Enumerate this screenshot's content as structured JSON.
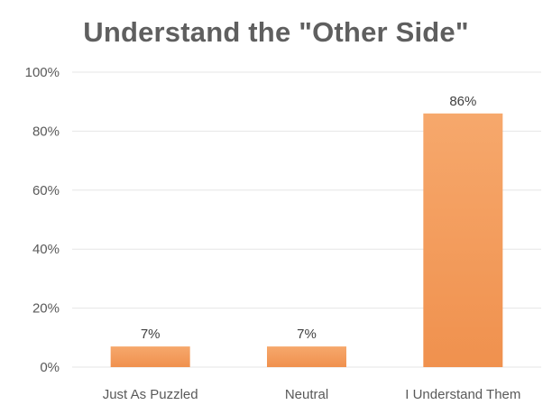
{
  "chart_data": {
    "type": "bar",
    "title": "Understand the \"Other Side\"",
    "xlabel": "",
    "ylabel": "",
    "categories": [
      "Just As Puzzled",
      "Neutral",
      "I Understand Them"
    ],
    "values": [
      7,
      7,
      86
    ],
    "data_labels": [
      "7%",
      "7%",
      "86%"
    ],
    "ylim": [
      0,
      100
    ],
    "y_ticks": [
      0,
      20,
      40,
      60,
      80,
      100
    ],
    "y_tick_labels": [
      "0%",
      "20%",
      "40%",
      "60%",
      "80%",
      "100%"
    ],
    "grid": true,
    "legend": "none",
    "bar_color": "#f0914e",
    "bar_highlight_color": "#f6a86c",
    "grid_color": "#e6e6e6"
  }
}
